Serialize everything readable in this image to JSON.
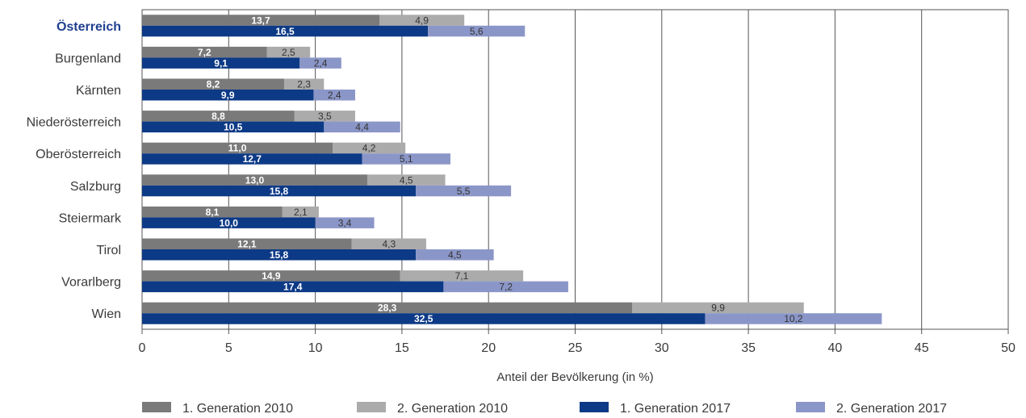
{
  "chart_data": {
    "type": "bar",
    "orientation": "horizontal",
    "stacked": true,
    "categories": [
      "Österreich",
      "Burgenland",
      "Kärnten",
      "Niederösterreich",
      "Oberösterreich",
      "Salzburg",
      "Steiermark",
      "Tirol",
      "Vorarlberg",
      "Wien"
    ],
    "highlight_category": "Österreich",
    "series": [
      {
        "name": "1. Generation 2010",
        "group": "2010",
        "color": "#7a7a7a",
        "label_color": "#ffffff",
        "values": [
          13.7,
          7.2,
          8.2,
          8.8,
          11.0,
          13.0,
          8.1,
          12.1,
          14.9,
          28.3
        ],
        "labels": [
          "13,7",
          "7,2",
          "8,2",
          "8,8",
          "11,0",
          "13,0",
          "8,1",
          "12,1",
          "14,9",
          "28,3"
        ]
      },
      {
        "name": "2. Generation 2010",
        "group": "2010",
        "color": "#ababab",
        "label_color": "#333333",
        "values": [
          4.9,
          2.5,
          2.3,
          3.5,
          4.2,
          4.5,
          2.1,
          4.3,
          7.1,
          9.9
        ],
        "labels": [
          "4,9",
          "2,5",
          "2,3",
          "3,5",
          "4,2",
          "4,5",
          "2,1",
          "4,3",
          "7,1",
          "9,9"
        ]
      },
      {
        "name": "1. Generation 2017",
        "group": "2017",
        "color": "#0d3a86",
        "label_color": "#ffffff",
        "values": [
          16.5,
          9.1,
          9.9,
          10.5,
          12.7,
          15.8,
          10.0,
          15.8,
          17.4,
          32.5
        ],
        "labels": [
          "16,5",
          "9,1",
          "9,9",
          "10,5",
          "12,7",
          "15,8",
          "10,0",
          "15,8",
          "17,4",
          "32,5"
        ]
      },
      {
        "name": "2. Generation 2017",
        "group": "2017",
        "color": "#8b96c8",
        "label_color": "#333333",
        "values": [
          5.6,
          2.4,
          2.4,
          4.4,
          5.1,
          5.5,
          3.4,
          4.5,
          7.2,
          10.2
        ],
        "labels": [
          "5,6",
          "2,4",
          "2,4",
          "4,4",
          "5,1",
          "5,5",
          "3,4",
          "4,5",
          "7,2",
          "10,2"
        ]
      }
    ],
    "xlabel": "Anteil der Bevölkerung (in %)",
    "xlim": [
      0,
      50
    ],
    "xticks": [
      0,
      5,
      10,
      15,
      20,
      25,
      30,
      35,
      40,
      45,
      50
    ],
    "grid": true,
    "legend_position": "bottom"
  }
}
